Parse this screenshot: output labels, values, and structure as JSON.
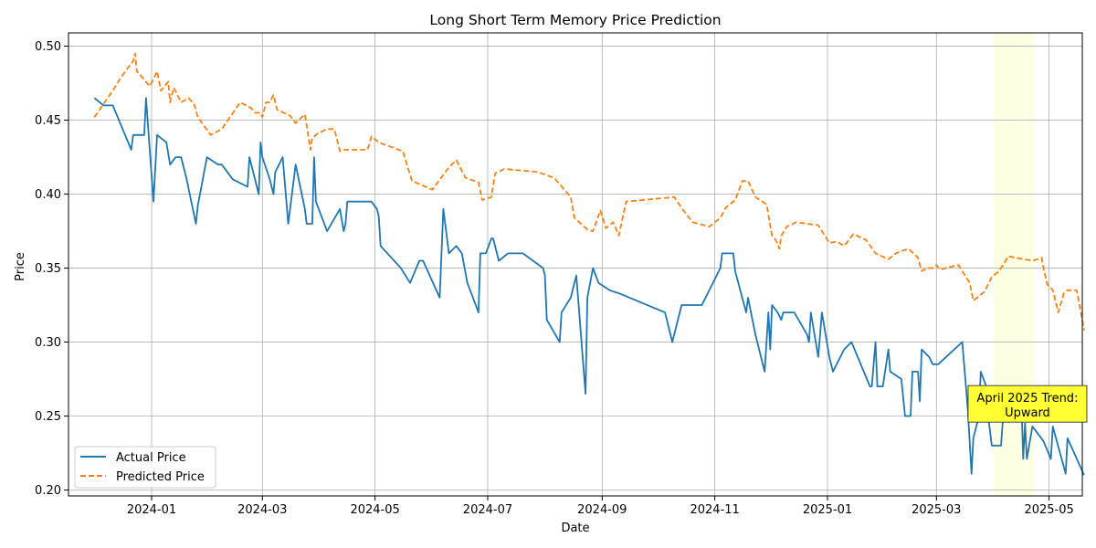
{
  "chart_data": {
    "type": "line",
    "title": "Long Short Term Memory Price Prediction",
    "xlabel": "Date",
    "ylabel": "Price",
    "x_axis_type": "date",
    "xlim": [
      "2023-11-17",
      "2025-05-19"
    ],
    "ylim": [
      0.196,
      0.509
    ],
    "x_ticks": [
      "2024-01-01",
      "2024-03-01",
      "2024-05-01",
      "2024-07-01",
      "2024-09-01",
      "2024-11-01",
      "2025-01-01",
      "2025-03-01",
      "2025-05-01"
    ],
    "x_tick_labels": [
      "2024-01",
      "2024-03",
      "2024-05",
      "2024-07",
      "2024-09",
      "2024-11",
      "2025-01",
      "2025-03",
      "2025-05"
    ],
    "y_ticks": [
      0.2,
      0.25,
      0.3,
      0.35,
      0.4,
      0.45,
      0.5
    ],
    "y_tick_labels": [
      "0.20",
      "0.25",
      "0.30",
      "0.35",
      "0.40",
      "0.45",
      "0.50"
    ],
    "grid": true,
    "legend_position": "lower-left",
    "highlight_span": {
      "start": "2025-04-01",
      "end": "2025-04-23",
      "color": "#ffffe0"
    },
    "annotation": {
      "text_line1": "April 2025 Trend:",
      "text_line2": "Upward",
      "date": "2025-04-01",
      "value": 0.257,
      "box_color": "#ffff33"
    },
    "series": [
      {
        "name": "Actual Price",
        "color": "#1f77b4",
        "style": "solid",
        "points": [
          [
            "2023-12-01",
            0.465
          ],
          [
            "2023-12-06",
            0.46
          ],
          [
            "2023-12-11",
            0.46
          ],
          [
            "2023-12-21",
            0.43
          ],
          [
            "2023-12-22",
            0.44
          ],
          [
            "2023-12-28",
            0.44
          ],
          [
            "2023-12-29",
            0.465
          ],
          [
            "2024-01-02",
            0.395
          ],
          [
            "2024-01-04",
            0.44
          ],
          [
            "2024-01-09",
            0.435
          ],
          [
            "2024-01-11",
            0.42
          ],
          [
            "2024-01-14",
            0.425
          ],
          [
            "2024-01-17",
            0.425
          ],
          [
            "2024-01-20",
            0.41
          ],
          [
            "2024-01-25",
            0.38
          ],
          [
            "2024-01-26",
            0.392
          ],
          [
            "2024-01-31",
            0.425
          ],
          [
            "2024-02-06",
            0.42
          ],
          [
            "2024-02-08",
            0.42
          ],
          [
            "2024-02-14",
            0.41
          ],
          [
            "2024-02-22",
            0.405
          ],
          [
            "2024-02-23",
            0.425
          ],
          [
            "2024-02-28",
            0.4
          ],
          [
            "2024-02-29",
            0.435
          ],
          [
            "2024-03-01",
            0.425
          ],
          [
            "2024-03-05",
            0.41
          ],
          [
            "2024-03-07",
            0.4
          ],
          [
            "2024-03-08",
            0.415
          ],
          [
            "2024-03-12",
            0.425
          ],
          [
            "2024-03-15",
            0.38
          ],
          [
            "2024-03-19",
            0.42
          ],
          [
            "2024-03-24",
            0.39
          ],
          [
            "2024-03-25",
            0.38
          ],
          [
            "2024-03-28",
            0.38
          ],
          [
            "2024-03-29",
            0.425
          ],
          [
            "2024-03-30",
            0.395
          ],
          [
            "2024-04-05",
            0.375
          ],
          [
            "2024-04-12",
            0.39
          ],
          [
            "2024-04-14",
            0.375
          ],
          [
            "2024-04-15",
            0.38
          ],
          [
            "2024-04-16",
            0.395
          ],
          [
            "2024-04-29",
            0.395
          ],
          [
            "2024-05-02",
            0.39
          ],
          [
            "2024-05-03",
            0.385
          ],
          [
            "2024-05-04",
            0.365
          ],
          [
            "2024-05-15",
            0.35
          ],
          [
            "2024-05-20",
            0.34
          ],
          [
            "2024-05-25",
            0.355
          ],
          [
            "2024-05-27",
            0.355
          ],
          [
            "2024-06-05",
            0.33
          ],
          [
            "2024-06-07",
            0.39
          ],
          [
            "2024-06-10",
            0.36
          ],
          [
            "2024-06-14",
            0.365
          ],
          [
            "2024-06-17",
            0.36
          ],
          [
            "2024-06-20",
            0.34
          ],
          [
            "2024-06-26",
            0.32
          ],
          [
            "2024-06-27",
            0.36
          ],
          [
            "2024-06-30",
            0.36
          ],
          [
            "2024-07-03",
            0.37
          ],
          [
            "2024-07-04",
            0.37
          ],
          [
            "2024-07-07",
            0.355
          ],
          [
            "2024-07-12",
            0.36
          ],
          [
            "2024-07-20",
            0.36
          ],
          [
            "2024-07-31",
            0.35
          ],
          [
            "2024-08-01",
            0.345
          ],
          [
            "2024-08-02",
            0.315
          ],
          [
            "2024-08-09",
            0.3
          ],
          [
            "2024-08-10",
            0.32
          ],
          [
            "2024-08-15",
            0.33
          ],
          [
            "2024-08-18",
            0.345
          ],
          [
            "2024-08-23",
            0.265
          ],
          [
            "2024-08-24",
            0.33
          ],
          [
            "2024-08-27",
            0.35
          ],
          [
            "2024-08-30",
            0.34
          ],
          [
            "2024-09-05",
            0.335
          ],
          [
            "2024-09-10",
            0.333
          ],
          [
            "2024-10-05",
            0.32
          ],
          [
            "2024-10-09",
            0.3
          ],
          [
            "2024-10-14",
            0.325
          ],
          [
            "2024-10-23",
            0.325
          ],
          [
            "2024-10-25",
            0.325
          ],
          [
            "2024-11-04",
            0.35
          ],
          [
            "2024-11-05",
            0.36
          ],
          [
            "2024-11-11",
            0.36
          ],
          [
            "2024-11-12",
            0.348
          ],
          [
            "2024-11-18",
            0.32
          ],
          [
            "2024-11-19",
            0.33
          ],
          [
            "2024-11-23",
            0.305
          ],
          [
            "2024-11-28",
            0.28
          ],
          [
            "2024-11-30",
            0.32
          ],
          [
            "2024-12-01",
            0.295
          ],
          [
            "2024-12-02",
            0.325
          ],
          [
            "2024-12-05",
            0.32
          ],
          [
            "2024-12-07",
            0.315
          ],
          [
            "2024-12-08",
            0.32
          ],
          [
            "2024-12-14",
            0.32
          ],
          [
            "2024-12-21",
            0.305
          ],
          [
            "2024-12-22",
            0.3
          ],
          [
            "2024-12-23",
            0.32
          ],
          [
            "2024-12-25",
            0.305
          ],
          [
            "2024-12-27",
            0.29
          ],
          [
            "2024-12-29",
            0.32
          ],
          [
            "2025-01-02",
            0.29
          ],
          [
            "2025-01-04",
            0.28
          ],
          [
            "2025-01-10",
            0.295
          ],
          [
            "2025-01-14",
            0.3
          ],
          [
            "2025-01-24",
            0.27
          ],
          [
            "2025-01-25",
            0.27
          ],
          [
            "2025-01-27",
            0.3
          ],
          [
            "2025-01-28",
            0.27
          ],
          [
            "2025-01-31",
            0.27
          ],
          [
            "2025-02-03",
            0.295
          ],
          [
            "2025-02-04",
            0.28
          ],
          [
            "2025-02-10",
            0.275
          ],
          [
            "2025-02-12",
            0.25
          ],
          [
            "2025-02-15",
            0.25
          ],
          [
            "2025-02-16",
            0.28
          ],
          [
            "2025-02-19",
            0.28
          ],
          [
            "2025-02-20",
            0.26
          ],
          [
            "2025-02-21",
            0.295
          ],
          [
            "2025-02-25",
            0.29
          ],
          [
            "2025-02-27",
            0.285
          ],
          [
            "2025-03-02",
            0.285
          ],
          [
            "2025-03-15",
            0.3
          ],
          [
            "2025-03-18",
            0.255
          ],
          [
            "2025-03-20",
            0.211
          ],
          [
            "2025-03-21",
            0.235
          ],
          [
            "2025-03-24",
            0.25
          ],
          [
            "2025-03-25",
            0.28
          ],
          [
            "2025-03-28",
            0.27
          ],
          [
            "2025-03-29",
            0.25
          ],
          [
            "2025-03-31",
            0.23
          ],
          [
            "2025-04-05",
            0.23
          ],
          [
            "2025-04-07",
            0.265
          ],
          [
            "2025-04-11",
            0.265
          ],
          [
            "2025-04-16",
            0.26
          ],
          [
            "2025-04-17",
            0.221
          ],
          [
            "2025-04-18",
            0.245
          ],
          [
            "2025-04-19",
            0.221
          ],
          [
            "2025-04-22",
            0.243
          ],
          [
            "2025-04-28",
            0.233
          ],
          [
            "2025-05-02",
            0.221
          ],
          [
            "2025-05-03",
            0.243
          ],
          [
            "2025-05-10",
            0.211
          ],
          [
            "2025-05-11",
            0.235
          ],
          [
            "2025-05-20",
            0.21
          ]
        ]
      },
      {
        "name": "Predicted Price",
        "color": "#ff7f0e",
        "style": "dashed",
        "points": [
          [
            "2023-12-01",
            0.452
          ],
          [
            "2023-12-11",
            0.47
          ],
          [
            "2023-12-16",
            0.48
          ],
          [
            "2023-12-22",
            0.49
          ],
          [
            "2023-12-23",
            0.495
          ],
          [
            "2023-12-24",
            0.483
          ],
          [
            "2023-12-31",
            0.473
          ],
          [
            "2024-01-04",
            0.483
          ],
          [
            "2024-01-06",
            0.47
          ],
          [
            "2024-01-10",
            0.476
          ],
          [
            "2024-01-11",
            0.462
          ],
          [
            "2024-01-13",
            0.472
          ],
          [
            "2024-01-17",
            0.462
          ],
          [
            "2024-01-21",
            0.465
          ],
          [
            "2024-01-24",
            0.461
          ],
          [
            "2024-01-26",
            0.452
          ],
          [
            "2024-02-02",
            0.44
          ],
          [
            "2024-02-08",
            0.444
          ],
          [
            "2024-02-18",
            0.462
          ],
          [
            "2024-02-24",
            0.458
          ],
          [
            "2024-02-26",
            0.455
          ],
          [
            "2024-02-29",
            0.455
          ],
          [
            "2024-03-01",
            0.452
          ],
          [
            "2024-03-03",
            0.462
          ],
          [
            "2024-03-05",
            0.462
          ],
          [
            "2024-03-07",
            0.467
          ],
          [
            "2024-03-09",
            0.457
          ],
          [
            "2024-03-16",
            0.453
          ],
          [
            "2024-03-19",
            0.448
          ],
          [
            "2024-03-24",
            0.454
          ],
          [
            "2024-03-27",
            0.43
          ],
          [
            "2024-03-28",
            0.438
          ],
          [
            "2024-03-31",
            0.441
          ],
          [
            "2024-04-05",
            0.444
          ],
          [
            "2024-04-09",
            0.444
          ],
          [
            "2024-04-12",
            0.429
          ],
          [
            "2024-04-14",
            0.43
          ],
          [
            "2024-04-27",
            0.43
          ],
          [
            "2024-04-29",
            0.439
          ],
          [
            "2024-05-03",
            0.435
          ],
          [
            "2024-05-16",
            0.429
          ],
          [
            "2024-05-21",
            0.409
          ],
          [
            "2024-06-01",
            0.403
          ],
          [
            "2024-06-10",
            0.418
          ],
          [
            "2024-06-14",
            0.423
          ],
          [
            "2024-06-19",
            0.411
          ],
          [
            "2024-06-26",
            0.408
          ],
          [
            "2024-06-28",
            0.396
          ],
          [
            "2024-07-03",
            0.398
          ],
          [
            "2024-07-05",
            0.414
          ],
          [
            "2024-07-10",
            0.417
          ],
          [
            "2024-07-28",
            0.415
          ],
          [
            "2024-08-06",
            0.411
          ],
          [
            "2024-08-15",
            0.398
          ],
          [
            "2024-08-17",
            0.384
          ],
          [
            "2024-08-24",
            0.376
          ],
          [
            "2024-08-27",
            0.375
          ],
          [
            "2024-08-31",
            0.389
          ],
          [
            "2024-09-03",
            0.377
          ],
          [
            "2024-09-07",
            0.381
          ],
          [
            "2024-09-10",
            0.372
          ],
          [
            "2024-09-14",
            0.395
          ],
          [
            "2024-10-10",
            0.398
          ],
          [
            "2024-10-15",
            0.389
          ],
          [
            "2024-10-20",
            0.381
          ],
          [
            "2024-10-29",
            0.378
          ],
          [
            "2024-11-04",
            0.384
          ],
          [
            "2024-11-07",
            0.391
          ],
          [
            "2024-11-12",
            0.396
          ],
          [
            "2024-11-16",
            0.409
          ],
          [
            "2024-11-19",
            0.409
          ],
          [
            "2024-11-23",
            0.398
          ],
          [
            "2024-11-29",
            0.393
          ],
          [
            "2024-12-02",
            0.372
          ],
          [
            "2024-12-04",
            0.369
          ],
          [
            "2024-12-06",
            0.363
          ],
          [
            "2024-12-07",
            0.372
          ],
          [
            "2024-12-10",
            0.378
          ],
          [
            "2024-12-15",
            0.381
          ],
          [
            "2024-12-27",
            0.379
          ],
          [
            "2025-01-02",
            0.367
          ],
          [
            "2025-01-06",
            0.368
          ],
          [
            "2025-01-10",
            0.365
          ],
          [
            "2025-01-15",
            0.373
          ],
          [
            "2025-01-22",
            0.369
          ],
          [
            "2025-01-27",
            0.36
          ],
          [
            "2025-02-03",
            0.356
          ],
          [
            "2025-02-07",
            0.36
          ],
          [
            "2025-02-11",
            0.362
          ],
          [
            "2025-02-14",
            0.363
          ],
          [
            "2025-02-19",
            0.357
          ],
          [
            "2025-02-21",
            0.348
          ],
          [
            "2025-02-24",
            0.35
          ],
          [
            "2025-02-27",
            0.35
          ],
          [
            "2025-03-01",
            0.352
          ],
          [
            "2025-03-03",
            0.349
          ],
          [
            "2025-03-09",
            0.351
          ],
          [
            "2025-03-13",
            0.352
          ],
          [
            "2025-03-19",
            0.34
          ],
          [
            "2025-03-21",
            0.328
          ],
          [
            "2025-03-27",
            0.334
          ],
          [
            "2025-03-31",
            0.344
          ],
          [
            "2025-04-04",
            0.348
          ],
          [
            "2025-04-09",
            0.358
          ],
          [
            "2025-04-13",
            0.357
          ],
          [
            "2025-04-22",
            0.355
          ],
          [
            "2025-04-27",
            0.357
          ],
          [
            "2025-04-28",
            0.35
          ],
          [
            "2025-04-30",
            0.339
          ],
          [
            "2025-05-03",
            0.335
          ],
          [
            "2025-05-06",
            0.32
          ],
          [
            "2025-05-09",
            0.333
          ],
          [
            "2025-05-11",
            0.335
          ],
          [
            "2025-05-16",
            0.335
          ],
          [
            "2025-05-20",
            0.308
          ]
        ]
      }
    ]
  }
}
